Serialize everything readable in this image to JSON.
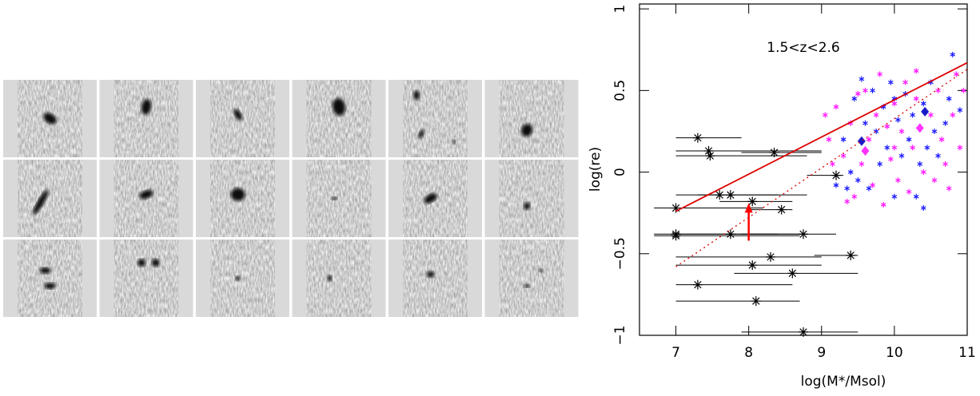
{
  "chart_data": {
    "type": "scatter",
    "xlabel": "log(M*/Msol)",
    "ylabel": "log(re)",
    "annotation": "1.5<z<2.6",
    "xlim": [
      6.5,
      11
    ],
    "ylim": [
      -1,
      1.03
    ],
    "xticks": [
      7,
      8,
      9,
      10,
      11
    ],
    "yticks": [
      {
        "value": -1,
        "label": "−1"
      },
      {
        "value": -0.5,
        "label": "−0.5"
      },
      0,
      0.5,
      1
    ],
    "series": [
      {
        "marker": "asterisk",
        "color": "#000000",
        "x": [
          7.3,
          7.45,
          7.47,
          8.35,
          9.2,
          7.6,
          7.75,
          8.05,
          7.0,
          8.45,
          7.0,
          7.0,
          7.75,
          8.75,
          9.4,
          8.3,
          8.05,
          8.6,
          7.3,
          8.1,
          8.75
        ],
        "values": [
          0.21,
          0.13,
          0.1,
          0.12,
          -0.02,
          -0.14,
          -0.14,
          -0.18,
          -0.22,
          -0.23,
          -0.38,
          -0.39,
          -0.38,
          -0.38,
          -0.51,
          -0.52,
          -0.57,
          -0.62,
          -0.69,
          -0.79,
          -0.98
        ],
        "xmin": [
          7.0,
          7.0,
          7.0,
          7.9,
          8.8,
          7.3,
          7.0,
          7.6,
          6.7,
          8.0,
          6.7,
          6.7,
          7.0,
          7.9,
          8.9,
          7.0,
          7.0,
          7.8,
          7.0,
          7.0,
          7.9
        ],
        "xmax": [
          7.9,
          9.0,
          8.8,
          9.0,
          9.3,
          8.4,
          8.8,
          8.6,
          8.2,
          8.6,
          8.7,
          8.7,
          8.4,
          9.2,
          9.5,
          9.0,
          9.0,
          9.5,
          8.6,
          8.7,
          9.5
        ]
      },
      {
        "marker": "star",
        "color": "#1a1aff",
        "x": [
          9.35,
          9.45,
          9.5,
          9.55,
          9.6,
          9.7,
          9.75,
          9.8,
          9.85,
          9.9,
          9.95,
          10.0,
          10.0,
          10.05,
          10.1,
          10.15,
          10.2,
          10.25,
          10.3,
          10.35,
          10.4,
          10.45,
          10.5,
          10.55,
          10.6,
          10.7,
          10.75,
          10.8,
          10.9,
          9.2,
          9.4,
          9.65,
          10.4,
          9.3
        ],
        "values": [
          -0.1,
          0.45,
          -0.05,
          0.57,
          0.3,
          0.5,
          0.25,
          0.05,
          0.4,
          0.15,
          0.55,
          -0.15,
          0.45,
          0.32,
          0.1,
          0.48,
          0.2,
          0.35,
          -0.15,
          0.05,
          0.42,
          0.15,
          0.55,
          0.25,
          0.1,
          0.3,
          0.45,
          0.72,
          0.38,
          -0.08,
          0.0,
          -0.1,
          -0.22,
          0.2
        ]
      },
      {
        "marker": "star",
        "color": "#ff1aff",
        "x": [
          9.05,
          9.1,
          9.2,
          9.3,
          9.35,
          9.4,
          9.5,
          9.55,
          9.6,
          9.65,
          9.7,
          9.75,
          9.8,
          9.85,
          9.9,
          9.95,
          10.0,
          10.05,
          10.1,
          10.15,
          10.2,
          10.25,
          10.3,
          10.4,
          10.5,
          10.55,
          10.6,
          10.65,
          10.7,
          10.8,
          10.85,
          10.9,
          10.95,
          10.3,
          9.45,
          10.0,
          9.15,
          10.75
        ],
        "values": [
          0.35,
          0.2,
          0.4,
          0.1,
          -0.18,
          0.3,
          0.48,
          0.05,
          0.5,
          0.2,
          -0.08,
          0.35,
          0.6,
          -0.2,
          0.28,
          0.08,
          0.42,
          -0.05,
          0.25,
          0.55,
          -0.12,
          0.15,
          0.45,
          0.0,
          0.35,
          -0.05,
          0.5,
          0.2,
          0.05,
          0.35,
          0.6,
          0.15,
          0.5,
          0.62,
          -0.15,
          0.15,
          0.05,
          -0.1
        ]
      },
      {
        "marker": "diamond",
        "color": "#1a1acc",
        "x": [
          9.55,
          10.42
        ],
        "values": [
          0.19,
          0.37
        ]
      },
      {
        "marker": "diamond",
        "color": "#ff33ff",
        "x": [
          9.6,
          10.35
        ],
        "values": [
          0.13,
          0.27
        ]
      },
      {
        "marker": "line",
        "color": "#dd0000",
        "x": [
          7.0,
          11.0
        ],
        "values": [
          -0.24,
          0.67
        ]
      },
      {
        "marker": "dotted",
        "color": "#dd0000",
        "x": [
          7.0,
          11.0
        ],
        "values": [
          -0.58,
          0.63
        ]
      },
      {
        "marker": "arrow",
        "color": "#ff0000",
        "x": [
          8.0
        ],
        "values": [
          -0.42
        ],
        "y_end": [
          -0.19
        ]
      }
    ]
  }
}
